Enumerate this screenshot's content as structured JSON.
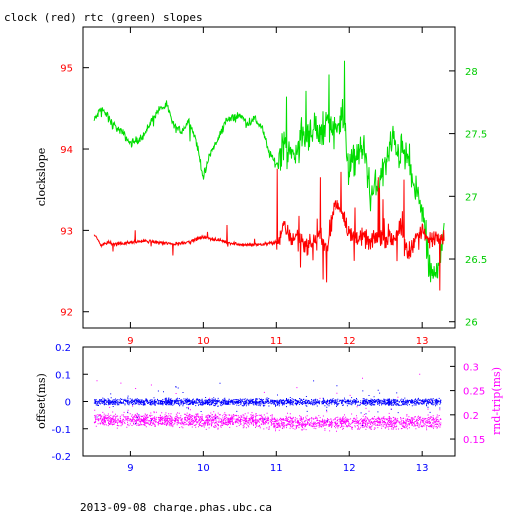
{
  "title": "clock (red) rtc (green) slopes",
  "footer": "2013-09-08 charge.phas.ubc.ca",
  "colors": {
    "clock": "#ff0000",
    "rtc": "#00dd00",
    "offset": "#0000ff",
    "rndtrip": "#ff00ff",
    "axis_left_top": "#ff0000",
    "axis_right_top": "#00cc00",
    "axis_left_bottom": "#0000ff",
    "axis_right_bottom": "#ff00ff",
    "frame": "#000000"
  },
  "chart_data": [
    {
      "type": "line",
      "ylabel": "clockslope",
      "xlim": [
        8.35,
        13.45
      ],
      "ylim": [
        91.8,
        95.5
      ],
      "y2lim": [
        25.95,
        28.35
      ],
      "x_ticks": [
        9,
        10,
        11,
        12,
        13
      ],
      "y_ticks": [
        92,
        93,
        94,
        95
      ],
      "y2_ticks": [
        26,
        26.5,
        27,
        27.5,
        28
      ],
      "y2_tick_labels": [
        "26",
        "26.5",
        "27",
        "27.5",
        "28"
      ],
      "series": [
        {
          "axis": "left",
          "x": [
            8.5,
            8.6,
            8.7,
            8.8,
            8.9,
            9.0,
            9.2,
            9.4,
            9.6,
            9.8,
            10.0,
            10.2,
            10.4,
            10.6,
            10.8,
            11.0,
            11.1,
            11.2,
            11.3,
            11.4,
            11.5,
            11.6,
            11.7,
            11.8,
            11.9,
            12.0,
            12.1,
            12.2,
            12.3,
            12.4,
            12.5,
            12.6,
            12.7,
            12.8,
            12.9,
            13.0,
            13.1,
            13.2,
            13.3
          ],
          "values": [
            92.95,
            92.82,
            92.85,
            92.83,
            92.84,
            92.85,
            92.87,
            92.85,
            92.83,
            92.86,
            92.92,
            92.88,
            92.84,
            92.82,
            92.83,
            92.85,
            93.05,
            92.9,
            92.95,
            92.8,
            92.85,
            92.95,
            92.75,
            93.35,
            93.25,
            92.95,
            92.92,
            92.9,
            92.85,
            92.95,
            92.9,
            92.88,
            93.05,
            92.7,
            92.9,
            93.0,
            92.85,
            92.95,
            92.9
          ]
        },
        {
          "axis": "right",
          "x": [
            8.5,
            8.6,
            8.7,
            8.8,
            8.9,
            9.0,
            9.1,
            9.2,
            9.3,
            9.4,
            9.5,
            9.6,
            9.7,
            9.8,
            9.9,
            10.0,
            10.1,
            10.2,
            10.3,
            10.4,
            10.5,
            10.6,
            10.7,
            10.8,
            10.9,
            11.0,
            11.1,
            11.2,
            11.3,
            11.4,
            11.5,
            11.6,
            11.7,
            11.8,
            11.9,
            12.0,
            12.1,
            12.2,
            12.3,
            12.4,
            12.5,
            12.6,
            12.7,
            12.8,
            12.9,
            13.0,
            13.1,
            13.2,
            13.3
          ],
          "values": [
            27.6,
            27.7,
            27.62,
            27.55,
            27.5,
            27.42,
            27.45,
            27.5,
            27.62,
            27.7,
            27.72,
            27.55,
            27.52,
            27.6,
            27.45,
            27.15,
            27.35,
            27.45,
            27.6,
            27.62,
            27.65,
            27.58,
            27.62,
            27.55,
            27.35,
            27.25,
            27.45,
            27.3,
            27.4,
            27.5,
            27.55,
            27.45,
            27.65,
            27.5,
            27.7,
            27.2,
            27.3,
            27.4,
            27.0,
            27.1,
            27.25,
            27.45,
            27.35,
            27.3,
            27.05,
            26.9,
            26.4,
            26.35,
            26.8
          ]
        }
      ]
    },
    {
      "type": "scatter",
      "ylabel": "offset(ms)",
      "y2label": "rnd-trip(ms)",
      "xlim": [
        8.35,
        13.45
      ],
      "ylim": [
        -0.2,
        0.2
      ],
      "y2lim": [
        0.115,
        0.34
      ],
      "x_ticks": [
        9,
        10,
        11,
        12,
        13
      ],
      "y_ticks": [
        -0.2,
        -0.1,
        0,
        0.1,
        0.2
      ],
      "y_tick_labels": [
        "-0.2",
        "-0.1",
        "0",
        "0.1",
        "0.2"
      ],
      "y2_ticks": [
        0.15,
        0.2,
        0.25,
        0.3
      ],
      "y2_tick_labels": [
        "0.15",
        "0.2",
        "0.25",
        "0.3"
      ],
      "series": [
        {
          "axis": "left",
          "x": [
            8.5,
            8.75,
            9.0,
            9.25,
            9.5,
            9.75,
            10.0,
            10.25,
            10.5,
            10.75,
            11.0,
            11.25,
            11.5,
            11.75,
            12.0,
            12.25,
            12.5,
            12.75,
            13.0,
            13.25
          ],
          "values": [
            0.0,
            0.0,
            0.0,
            0.0,
            0.0,
            0.0,
            0.0,
            0.0,
            0.0,
            0.0,
            0.0,
            0.0,
            0.0,
            0.0,
            0.0,
            0.0,
            0.0,
            0.0,
            0.0,
            0.0
          ]
        },
        {
          "axis": "right",
          "x": [
            8.5,
            8.75,
            9.0,
            9.25,
            9.5,
            9.75,
            10.0,
            10.25,
            10.5,
            10.75,
            11.0,
            11.25,
            11.5,
            11.75,
            12.0,
            12.25,
            12.5,
            12.75,
            13.0,
            13.25
          ],
          "values": [
            0.19,
            0.19,
            0.19,
            0.19,
            0.19,
            0.19,
            0.19,
            0.19,
            0.19,
            0.19,
            0.185,
            0.185,
            0.185,
            0.185,
            0.185,
            0.185,
            0.185,
            0.185,
            0.185,
            0.185
          ]
        }
      ]
    }
  ]
}
